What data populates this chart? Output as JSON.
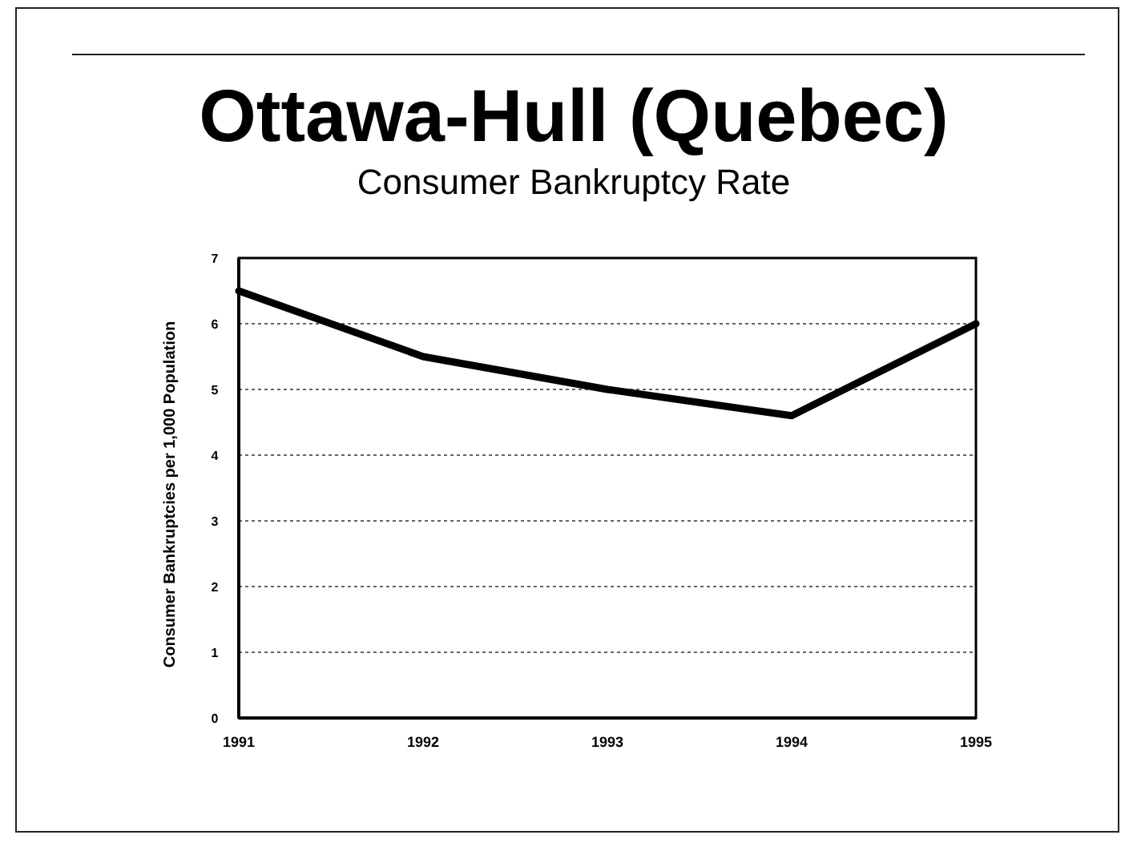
{
  "chart_data": {
    "type": "line",
    "title": "Ottawa-Hull (Quebec)",
    "subtitle": "Consumer Bankruptcy Rate",
    "ylabel": "Consumer Bankruptcies per 1,000 Population",
    "categories": [
      "1991",
      "1992",
      "1993",
      "1994",
      "1995"
    ],
    "series": [
      {
        "color": "#000000",
        "values": [
          6.5,
          5.5,
          5.0,
          4.6,
          6.0
        ]
      }
    ],
    "ylim": [
      0,
      7
    ],
    "yticks": [
      0,
      1,
      2,
      3,
      4,
      5,
      6,
      7
    ],
    "grid": "y",
    "marker": "none",
    "line_style": "solid"
  }
}
